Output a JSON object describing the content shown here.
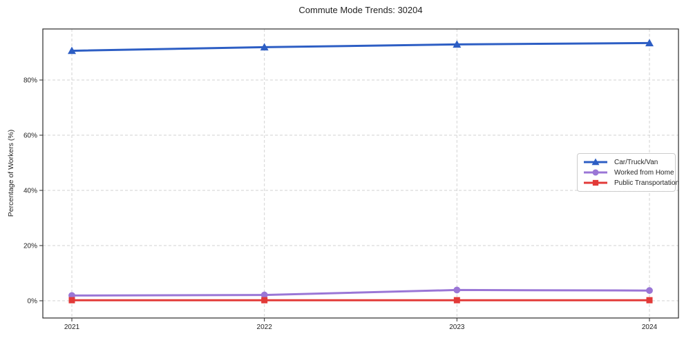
{
  "figure": {
    "background_color": "#ffffff",
    "spine_color": "#2b2b2b",
    "grid_color": "#d2d2d2",
    "text_color": "#1f1f1f"
  },
  "chart_data": {
    "type": "line",
    "title": "Commute Mode Trends: 30204",
    "xlabel": "",
    "ylabel": "Percentage of Workers (%)",
    "categories": [
      "2021",
      "2022",
      "2023",
      "2024"
    ],
    "series": [
      {
        "name": "Car/Truck/Van",
        "color": "#2d5ec4",
        "marker": "triangle",
        "values": [
          90.6,
          91.9,
          92.9,
          93.4
        ]
      },
      {
        "name": "Worked from Home",
        "color": "#9a76d6",
        "marker": "circle",
        "values": [
          1.9,
          2.1,
          3.9,
          3.7
        ]
      },
      {
        "name": "Public Transportation",
        "color": "#e23a38",
        "marker": "square",
        "values": [
          0.2,
          0.2,
          0.2,
          0.2
        ]
      }
    ],
    "yticks": {
      "values": [
        0,
        20,
        40,
        60,
        80
      ],
      "labels": [
        "0%",
        "20%",
        "40%",
        "60%",
        "80%"
      ]
    },
    "ylim": [
      -6.25,
      98.5
    ],
    "grid": true,
    "grid_style": "dashed",
    "legend_position": "center-right"
  }
}
